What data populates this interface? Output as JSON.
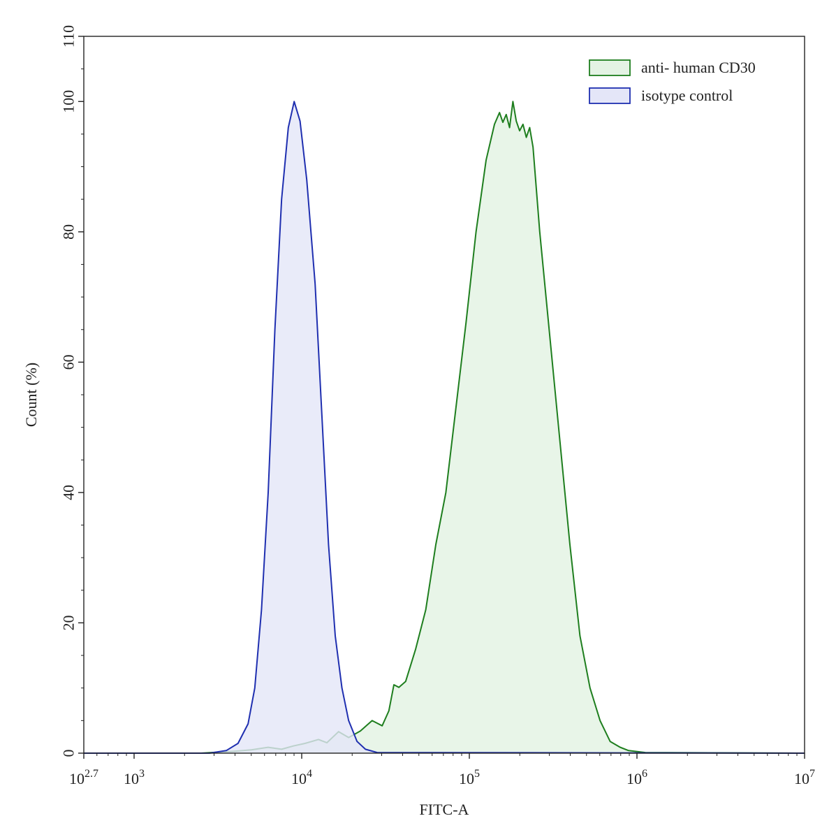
{
  "chart_data": {
    "type": "area",
    "xlabel": "FITC-A",
    "ylabel": "Count  (%)",
    "xscale": "log",
    "xlim_log10": [
      2.7,
      7
    ],
    "ylim": [
      0,
      110
    ],
    "grid": false,
    "legend_position": "top-right",
    "x_ticks": [
      {
        "base": "10",
        "exp": "2.7",
        "log10": 2.7
      },
      {
        "base": "10",
        "exp": "3",
        "log10": 3
      },
      {
        "base": "10",
        "exp": "4",
        "log10": 4
      },
      {
        "base": "10",
        "exp": "5",
        "log10": 5
      },
      {
        "base": "10",
        "exp": "6",
        "log10": 6
      },
      {
        "base": "10",
        "exp": "7",
        "log10": 7
      }
    ],
    "y_ticks": [
      "0",
      "20",
      "40",
      "60",
      "80",
      "100",
      "110"
    ],
    "y_tick_values": [
      0,
      20,
      40,
      60,
      80,
      100,
      110
    ],
    "series": [
      {
        "name": "anti- human CD30",
        "stroke": "#1e7e1e",
        "fill": "#e4f3e4",
        "points": [
          [
            2.7,
            0
          ],
          [
            3.4,
            0
          ],
          [
            3.6,
            0.3
          ],
          [
            3.7,
            0.5
          ],
          [
            3.8,
            0.9
          ],
          [
            3.88,
            0.6
          ],
          [
            3.95,
            1.1
          ],
          [
            4.02,
            1.5
          ],
          [
            4.1,
            2.1
          ],
          [
            4.15,
            1.6
          ],
          [
            4.22,
            3.3
          ],
          [
            4.28,
            2.4
          ],
          [
            4.35,
            3.4
          ],
          [
            4.42,
            5.0
          ],
          [
            4.48,
            4.2
          ],
          [
            4.52,
            6.5
          ],
          [
            4.55,
            10.5
          ],
          [
            4.58,
            10.1
          ],
          [
            4.62,
            11.0
          ],
          [
            4.68,
            16.0
          ],
          [
            4.74,
            22.0
          ],
          [
            4.8,
            32.0
          ],
          [
            4.86,
            40.0
          ],
          [
            4.92,
            53.0
          ],
          [
            4.98,
            66.0
          ],
          [
            5.04,
            80.0
          ],
          [
            5.1,
            91.0
          ],
          [
            5.15,
            96.5
          ],
          [
            5.18,
            98.3
          ],
          [
            5.2,
            96.8
          ],
          [
            5.22,
            98.0
          ],
          [
            5.24,
            96.0
          ],
          [
            5.26,
            100.0
          ],
          [
            5.28,
            97.0
          ],
          [
            5.3,
            95.5
          ],
          [
            5.32,
            96.5
          ],
          [
            5.34,
            94.5
          ],
          [
            5.36,
            96.0
          ],
          [
            5.38,
            93.0
          ],
          [
            5.42,
            80.0
          ],
          [
            5.48,
            64.0
          ],
          [
            5.54,
            48.0
          ],
          [
            5.6,
            32.0
          ],
          [
            5.66,
            18.0
          ],
          [
            5.72,
            10.0
          ],
          [
            5.78,
            5.0
          ],
          [
            5.84,
            1.8
          ],
          [
            5.9,
            0.9
          ],
          [
            5.95,
            0.4
          ],
          [
            6.05,
            0.1
          ],
          [
            7.0,
            0
          ]
        ]
      },
      {
        "name": "isotype control",
        "stroke": "#1f2fb0",
        "fill": "#e4e6f8",
        "points": [
          [
            2.7,
            0
          ],
          [
            3.45,
            0
          ],
          [
            3.55,
            0.4
          ],
          [
            3.62,
            1.5
          ],
          [
            3.68,
            4.5
          ],
          [
            3.72,
            10.0
          ],
          [
            3.76,
            22.0
          ],
          [
            3.8,
            40.0
          ],
          [
            3.84,
            65.0
          ],
          [
            3.88,
            85.0
          ],
          [
            3.92,
            96.0
          ],
          [
            3.955,
            100.0
          ],
          [
            3.99,
            97.0
          ],
          [
            4.03,
            88.0
          ],
          [
            4.08,
            72.0
          ],
          [
            4.12,
            52.0
          ],
          [
            4.16,
            32.0
          ],
          [
            4.2,
            18.0
          ],
          [
            4.24,
            10.0
          ],
          [
            4.28,
            5.0
          ],
          [
            4.33,
            1.8
          ],
          [
            4.38,
            0.6
          ],
          [
            4.45,
            0.1
          ],
          [
            7.0,
            0
          ]
        ]
      }
    ]
  }
}
